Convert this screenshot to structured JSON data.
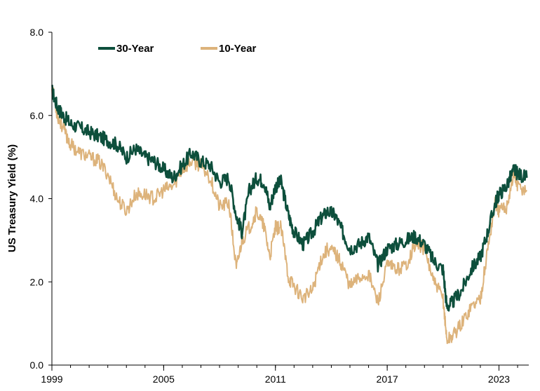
{
  "chart_data": {
    "type": "line",
    "title": "",
    "xlabel": "",
    "ylabel": "US Treasury Yield (%)",
    "xlim": [
      1999,
      2024.6
    ],
    "ylim": [
      0,
      8
    ],
    "x_ticks": [
      1999,
      2005,
      2011,
      2017,
      2023
    ],
    "x_tick_labels": [
      "1999",
      "2005",
      "2011",
      "2017",
      "2023"
    ],
    "y_ticks": [
      0,
      2,
      4,
      6,
      8
    ],
    "y_tick_labels": [
      "0.0",
      "2.0",
      "4.0",
      "6.0",
      "8.0"
    ],
    "grid": false,
    "legend_position": "top-left",
    "series": [
      {
        "name": "30-Year",
        "color": "#0d4f3c",
        "x": [
          1999.0,
          1999.3,
          1999.6,
          2000.0,
          2000.5,
          2001.0,
          2001.5,
          2002.0,
          2002.5,
          2003.0,
          2003.5,
          2004.0,
          2004.5,
          2005.0,
          2005.5,
          2006.0,
          2006.5,
          2007.0,
          2007.5,
          2008.0,
          2008.5,
          2008.9,
          2009.2,
          2009.6,
          2010.0,
          2010.4,
          2010.7,
          2011.0,
          2011.3,
          2011.7,
          2012.0,
          2012.5,
          2013.0,
          2013.4,
          2013.8,
          2014.2,
          2014.6,
          2015.0,
          2015.5,
          2016.0,
          2016.5,
          2017.0,
          2017.5,
          2018.0,
          2018.5,
          2019.0,
          2019.5,
          2020.0,
          2020.2,
          2020.5,
          2021.0,
          2021.5,
          2022.0,
          2022.4,
          2022.8,
          2023.0,
          2023.4,
          2023.8,
          2024.0,
          2024.5
        ],
        "values": [
          6.6,
          6.2,
          6.0,
          5.8,
          5.7,
          5.6,
          5.5,
          5.4,
          5.3,
          5.0,
          5.2,
          5.0,
          4.9,
          4.7,
          4.5,
          4.8,
          5.1,
          4.9,
          4.8,
          4.4,
          4.5,
          3.6,
          3.2,
          4.2,
          4.5,
          4.4,
          3.8,
          4.3,
          4.4,
          3.6,
          3.2,
          2.9,
          3.2,
          3.5,
          3.7,
          3.6,
          3.2,
          2.8,
          2.9,
          3.1,
          2.4,
          2.8,
          2.9,
          3.0,
          3.1,
          2.9,
          2.5,
          2.3,
          1.4,
          1.5,
          1.8,
          2.3,
          2.6,
          3.2,
          3.9,
          4.1,
          4.3,
          4.7,
          4.6,
          4.5
        ]
      },
      {
        "name": "10-Year",
        "color": "#ddb37b",
        "x": [
          1999.0,
          1999.3,
          1999.6,
          2000.0,
          2000.5,
          2001.0,
          2001.5,
          2002.0,
          2002.5,
          2003.0,
          2003.5,
          2004.0,
          2004.5,
          2005.0,
          2005.5,
          2006.0,
          2006.5,
          2007.0,
          2007.5,
          2008.0,
          2008.5,
          2008.9,
          2009.2,
          2009.6,
          2010.0,
          2010.4,
          2010.7,
          2011.0,
          2011.3,
          2011.7,
          2012.0,
          2012.5,
          2013.0,
          2013.4,
          2013.8,
          2014.2,
          2014.6,
          2015.0,
          2015.5,
          2016.0,
          2016.5,
          2017.0,
          2017.5,
          2018.0,
          2018.5,
          2019.0,
          2019.5,
          2020.0,
          2020.2,
          2020.5,
          2021.0,
          2021.5,
          2022.0,
          2022.4,
          2022.8,
          2023.0,
          2023.4,
          2023.8,
          2024.0,
          2024.5
        ],
        "values": [
          6.7,
          6.0,
          5.7,
          5.3,
          5.1,
          5.0,
          4.9,
          4.6,
          4.0,
          3.7,
          4.1,
          4.1,
          4.0,
          4.2,
          4.3,
          4.7,
          4.9,
          4.8,
          4.5,
          3.8,
          3.9,
          2.3,
          3.0,
          3.3,
          3.7,
          3.3,
          2.6,
          3.3,
          3.3,
          2.1,
          1.9,
          1.6,
          1.8,
          2.5,
          2.8,
          2.7,
          2.4,
          1.9,
          2.1,
          2.2,
          1.5,
          2.4,
          2.3,
          2.4,
          2.9,
          2.8,
          2.0,
          1.6,
          0.6,
          0.7,
          1.0,
          1.4,
          1.6,
          2.8,
          3.9,
          3.7,
          3.8,
          4.6,
          4.3,
          4.2
        ]
      }
    ]
  }
}
